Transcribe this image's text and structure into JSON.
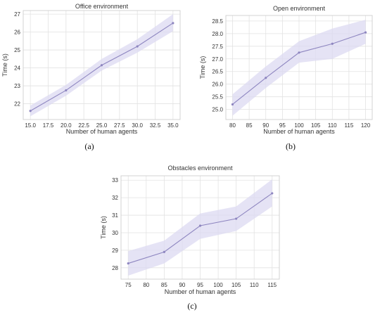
{
  "chart_data": [
    {
      "type": "line",
      "title": "Office environment",
      "xlabel": "Number of human agents",
      "ylabel": "Time (s)",
      "x": [
        15,
        20,
        25,
        30,
        35
      ],
      "series": [
        {
          "values": [
            21.6,
            22.75,
            24.15,
            25.2,
            26.5
          ],
          "lower": [
            21.3,
            22.45,
            23.85,
            24.85,
            26.05
          ],
          "upper": [
            21.9,
            23.05,
            24.5,
            25.6,
            27.0
          ]
        }
      ],
      "xticks": [
        15,
        17.5,
        20,
        22.5,
        25,
        27.5,
        30,
        32.5,
        35
      ],
      "xtick_labels": [
        "15.0",
        "17.5",
        "20.0",
        "22.5",
        "25.0",
        "27.5",
        "30.0",
        "32.5",
        "35.0"
      ],
      "yticks": [
        22,
        23,
        24,
        25,
        26,
        27
      ],
      "ytick_labels": [
        "22",
        "23",
        "24",
        "25",
        "26",
        "27"
      ],
      "xlim": [
        14.0,
        36.0
      ],
      "ylim": [
        21.12,
        27.2
      ],
      "grid": true,
      "caption": "(a)"
    },
    {
      "type": "line",
      "title": "Open environment",
      "xlabel": "Number of human agents",
      "ylabel": "Time (s)",
      "x": [
        80,
        90,
        100,
        110,
        120
      ],
      "series": [
        {
          "values": [
            25.2,
            26.25,
            27.25,
            27.6,
            28.05
          ],
          "lower": [
            24.75,
            25.85,
            26.85,
            27.0,
            27.6
          ],
          "upper": [
            25.6,
            26.7,
            27.7,
            28.2,
            28.55
          ]
        }
      ],
      "xticks": [
        80,
        85,
        90,
        95,
        100,
        105,
        110,
        115,
        120
      ],
      "xtick_labels": [
        "80",
        "85",
        "90",
        "95",
        "100",
        "105",
        "110",
        "115",
        "120"
      ],
      "yticks": [
        25.0,
        25.5,
        26.0,
        26.5,
        27.0,
        27.5,
        28.0,
        28.5
      ],
      "ytick_labels": [
        "25.0",
        "25.5",
        "26.0",
        "26.5",
        "27.0",
        "27.5",
        "28.0",
        "28.5"
      ],
      "xlim": [
        78.0,
        122.0
      ],
      "ylim": [
        24.6,
        28.72
      ],
      "grid": true,
      "caption": "(b)"
    },
    {
      "type": "line",
      "title": "Obstacles environment",
      "xlabel": "Number of human agents",
      "ylabel": "Time (s)",
      "x": [
        75,
        85,
        95,
        105,
        115
      ],
      "series": [
        {
          "values": [
            28.25,
            28.9,
            30.4,
            30.8,
            32.25
          ],
          "lower": [
            27.55,
            28.25,
            29.65,
            30.1,
            31.5
          ],
          "upper": [
            28.95,
            29.55,
            31.1,
            31.5,
            33.05
          ]
        }
      ],
      "xticks": [
        75,
        80,
        85,
        90,
        95,
        100,
        105,
        110,
        115
      ],
      "xtick_labels": [
        "75",
        "80",
        "85",
        "90",
        "95",
        "100",
        "105",
        "110",
        "115"
      ],
      "yticks": [
        28,
        29,
        30,
        31,
        32,
        33
      ],
      "ytick_labels": [
        "28",
        "29",
        "30",
        "31",
        "32",
        "33"
      ],
      "xlim": [
        73.0,
        117.0
      ],
      "ylim": [
        27.35,
        33.25
      ],
      "grid": true,
      "caption": "(c)"
    }
  ],
  "colors": {
    "line": "#8e86c0",
    "band": "#dcd9f2",
    "grid": "#e2e2e2",
    "frame": "#cfcfcf",
    "text": "#333333"
  }
}
